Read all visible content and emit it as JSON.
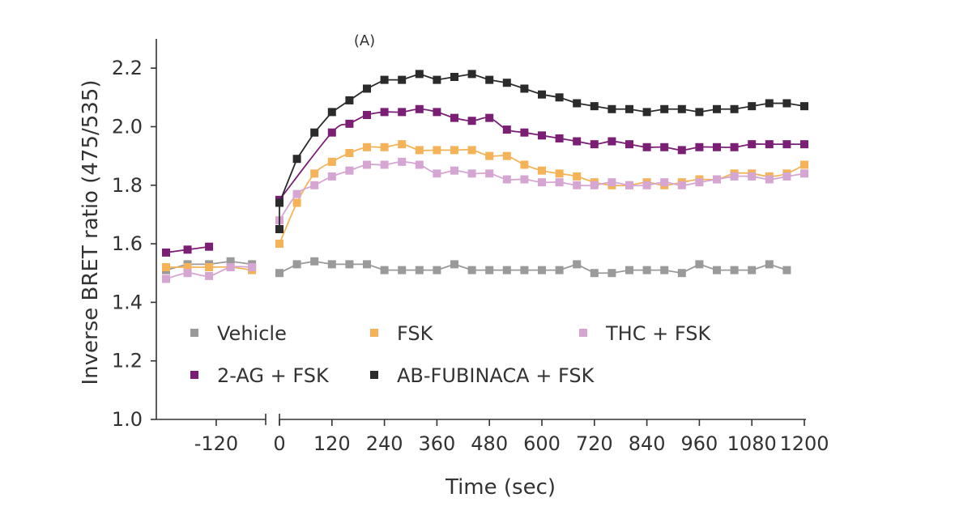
{
  "chart_data": {
    "type": "line",
    "panel_label": "(A)",
    "xlabel": "Time (sec)",
    "ylabel": "Inverse BRET ratio (475/535)",
    "ylim": [
      1.0,
      2.3
    ],
    "yticks": [
      1.0,
      1.2,
      1.4,
      1.6,
      1.8,
      2.0,
      2.2
    ],
    "ytick_labels": [
      "1.0",
      "1.2",
      "1.4",
      "1.6",
      "1.8",
      "2.0",
      "2.2"
    ],
    "x_pre_range": [
      -190,
      -60
    ],
    "x_pre_ticks": [
      -120
    ],
    "x_pre_tick_labels": [
      "-120"
    ],
    "x_post_range": [
      0,
      1200
    ],
    "x_post_ticks": [
      0,
      120,
      240,
      360,
      480,
      600,
      720,
      840,
      960,
      1080,
      1200
    ],
    "x_post_tick_labels": [
      "0",
      "120",
      "240",
      "360",
      "480",
      "600",
      "720",
      "840",
      "960",
      "1080",
      "1200"
    ],
    "axis_break": true,
    "grid": false,
    "legend_position": "bottom-center inside plot",
    "series": [
      {
        "name": "Vehicle",
        "color": "#9a9a9a",
        "smooth": false,
        "pre": [
          [
            -190,
            1.51
          ],
          [
            -160,
            1.53
          ],
          [
            -130,
            1.53
          ],
          [
            -100,
            1.54
          ],
          [
            -70,
            1.53
          ]
        ],
        "post": [
          [
            0,
            1.5
          ],
          [
            40,
            1.53
          ],
          [
            80,
            1.54
          ],
          [
            120,
            1.53
          ],
          [
            160,
            1.53
          ],
          [
            200,
            1.53
          ],
          [
            240,
            1.51
          ],
          [
            280,
            1.51
          ],
          [
            320,
            1.51
          ],
          [
            360,
            1.51
          ],
          [
            400,
            1.53
          ],
          [
            440,
            1.51
          ],
          [
            480,
            1.51
          ],
          [
            520,
            1.51
          ],
          [
            560,
            1.51
          ],
          [
            600,
            1.51
          ],
          [
            640,
            1.51
          ],
          [
            680,
            1.53
          ],
          [
            720,
            1.5
          ],
          [
            760,
            1.5
          ],
          [
            800,
            1.51
          ],
          [
            840,
            1.51
          ],
          [
            880,
            1.51
          ],
          [
            920,
            1.5
          ],
          [
            960,
            1.53
          ],
          [
            1000,
            1.51
          ],
          [
            1040,
            1.51
          ],
          [
            1080,
            1.51
          ],
          [
            1120,
            1.53
          ],
          [
            1160,
            1.51
          ]
        ]
      },
      {
        "name": "FSK",
        "color": "#f4b358",
        "smooth": true,
        "pre": [
          [
            -190,
            1.52
          ],
          [
            -160,
            1.52
          ],
          [
            -130,
            1.52
          ],
          [
            -100,
            1.52
          ],
          [
            -70,
            1.51
          ]
        ],
        "post": [
          [
            0,
            1.6
          ],
          [
            40,
            1.74
          ],
          [
            80,
            1.84
          ],
          [
            120,
            1.88
          ],
          [
            160,
            1.91
          ],
          [
            200,
            1.93
          ],
          [
            240,
            1.93
          ],
          [
            280,
            1.94
          ],
          [
            320,
            1.92
          ],
          [
            360,
            1.92
          ],
          [
            400,
            1.92
          ],
          [
            440,
            1.92
          ],
          [
            480,
            1.9
          ],
          [
            520,
            1.9
          ],
          [
            560,
            1.87
          ],
          [
            600,
            1.85
          ],
          [
            640,
            1.84
          ],
          [
            680,
            1.83
          ],
          [
            720,
            1.81
          ],
          [
            760,
            1.8
          ],
          [
            800,
            1.8
          ],
          [
            840,
            1.81
          ],
          [
            880,
            1.8
          ],
          [
            920,
            1.81
          ],
          [
            960,
            1.82
          ],
          [
            1000,
            1.82
          ],
          [
            1040,
            1.84
          ],
          [
            1080,
            1.84
          ],
          [
            1120,
            1.83
          ],
          [
            1160,
            1.84
          ],
          [
            1200,
            1.87
          ]
        ]
      },
      {
        "name": "THC + FSK",
        "color": "#d6a6d3",
        "smooth": true,
        "pre": [
          [
            -190,
            1.48
          ],
          [
            -160,
            1.5
          ],
          [
            -130,
            1.49
          ],
          [
            -100,
            1.52
          ],
          [
            -70,
            1.52
          ]
        ],
        "post": [
          [
            0,
            1.68
          ],
          [
            40,
            1.77
          ],
          [
            80,
            1.8
          ],
          [
            120,
            1.83
          ],
          [
            160,
            1.85
          ],
          [
            200,
            1.87
          ],
          [
            240,
            1.87
          ],
          [
            280,
            1.88
          ],
          [
            320,
            1.87
          ],
          [
            360,
            1.84
          ],
          [
            400,
            1.85
          ],
          [
            440,
            1.84
          ],
          [
            480,
            1.84
          ],
          [
            520,
            1.82
          ],
          [
            560,
            1.82
          ],
          [
            600,
            1.81
          ],
          [
            640,
            1.81
          ],
          [
            680,
            1.8
          ],
          [
            720,
            1.8
          ],
          [
            760,
            1.81
          ],
          [
            800,
            1.8
          ],
          [
            840,
            1.8
          ],
          [
            880,
            1.81
          ],
          [
            920,
            1.8
          ],
          [
            960,
            1.81
          ],
          [
            1000,
            1.82
          ],
          [
            1040,
            1.83
          ],
          [
            1080,
            1.83
          ],
          [
            1120,
            1.82
          ],
          [
            1160,
            1.83
          ],
          [
            1200,
            1.84
          ]
        ]
      },
      {
        "name": "2-AG + FSK",
        "color": "#7b1f74",
        "smooth": true,
        "pre": [
          [
            -190,
            1.57
          ],
          [
            -160,
            1.58
          ],
          [
            -130,
            1.59
          ]
        ],
        "post": [
          [
            0,
            1.75
          ],
          [
            120,
            1.98
          ],
          [
            160,
            2.01
          ],
          [
            200,
            2.04
          ],
          [
            240,
            2.05
          ],
          [
            280,
            2.05
          ],
          [
            320,
            2.06
          ],
          [
            360,
            2.05
          ],
          [
            400,
            2.03
          ],
          [
            440,
            2.02
          ],
          [
            480,
            2.03
          ],
          [
            520,
            1.99
          ],
          [
            560,
            1.98
          ],
          [
            600,
            1.97
          ],
          [
            640,
            1.96
          ],
          [
            680,
            1.95
          ],
          [
            720,
            1.94
          ],
          [
            760,
            1.95
          ],
          [
            800,
            1.94
          ],
          [
            840,
            1.93
          ],
          [
            880,
            1.93
          ],
          [
            920,
            1.92
          ],
          [
            960,
            1.93
          ],
          [
            1000,
            1.93
          ],
          [
            1040,
            1.93
          ],
          [
            1080,
            1.94
          ],
          [
            1120,
            1.94
          ],
          [
            1160,
            1.94
          ],
          [
            1200,
            1.94
          ]
        ]
      },
      {
        "name": "AB-FUBINACA + FSK",
        "color": "#2b2b2b",
        "smooth": false,
        "pre": [],
        "post": [
          [
            0,
            1.65
          ],
          [
            0,
            1.74
          ],
          [
            40,
            1.89
          ],
          [
            80,
            1.98
          ],
          [
            120,
            2.05
          ],
          [
            160,
            2.09
          ],
          [
            200,
            2.13
          ],
          [
            240,
            2.16
          ],
          [
            280,
            2.16
          ],
          [
            320,
            2.18
          ],
          [
            360,
            2.16
          ],
          [
            400,
            2.17
          ],
          [
            440,
            2.18
          ],
          [
            480,
            2.16
          ],
          [
            520,
            2.15
          ],
          [
            560,
            2.13
          ],
          [
            600,
            2.11
          ],
          [
            640,
            2.1
          ],
          [
            680,
            2.08
          ],
          [
            720,
            2.07
          ],
          [
            760,
            2.06
          ],
          [
            800,
            2.06
          ],
          [
            840,
            2.05
          ],
          [
            880,
            2.06
          ],
          [
            920,
            2.06
          ],
          [
            960,
            2.05
          ],
          [
            1000,
            2.06
          ],
          [
            1040,
            2.06
          ],
          [
            1080,
            2.07
          ],
          [
            1120,
            2.08
          ],
          [
            1160,
            2.08
          ],
          [
            1200,
            2.07
          ]
        ]
      }
    ],
    "legend": [
      {
        "label": "Vehicle",
        "color": "#9a9a9a"
      },
      {
        "label": "FSK",
        "color": "#f4b358"
      },
      {
        "label": "THC + FSK",
        "color": "#d6a6d3"
      },
      {
        "label": "2-AG + FSK",
        "color": "#7b1f74"
      },
      {
        "label": "AB-FUBINACA + FSK",
        "color": "#2b2b2b"
      }
    ]
  }
}
